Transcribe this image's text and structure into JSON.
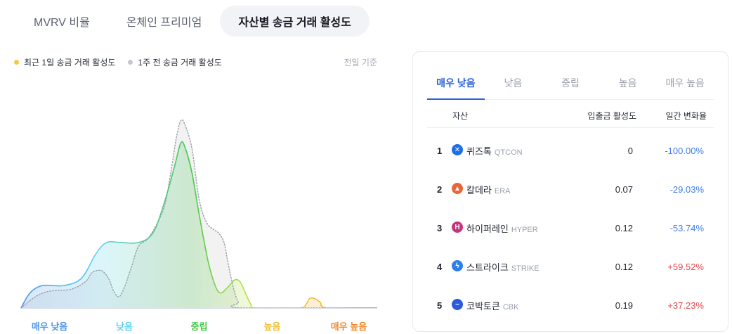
{
  "top_tabs": [
    {
      "label": "MVRV 비율",
      "active": false
    },
    {
      "label": "온체인 프리미엄",
      "active": false
    },
    {
      "label": "자산별 송금 거래 활성도",
      "active": true
    }
  ],
  "legend": {
    "current": {
      "label": "최근 1일 송금 거래 활성도",
      "color": "#f2c94c"
    },
    "previous": {
      "label": "1주 전 송금 거래 활성도",
      "color": "#c4c7cf"
    }
  },
  "reference_label": "전일 기준",
  "chart_data": {
    "type": "area",
    "categories": [
      "매우 낮음",
      "낮음",
      "중립",
      "높음",
      "매우 높음"
    ],
    "category_colors": [
      "#4f94e6",
      "#5fd3f0",
      "#48c64a",
      "#f0c23c",
      "#f08a2c"
    ],
    "x_range": [
      0,
      100
    ],
    "y_range": [
      0,
      100
    ],
    "series": [
      {
        "name": "최근 1일 송금 거래 활성도",
        "style": "filled-gradient",
        "points": [
          [
            0,
            0
          ],
          [
            2.5,
            8
          ],
          [
            6,
            12
          ],
          [
            12,
            12
          ],
          [
            17,
            16
          ],
          [
            21,
            29
          ],
          [
            24,
            35
          ],
          [
            28,
            35
          ],
          [
            33,
            35
          ],
          [
            37,
            40
          ],
          [
            40,
            55
          ],
          [
            43,
            75
          ],
          [
            44.8,
            88
          ],
          [
            46,
            86
          ],
          [
            48,
            72
          ],
          [
            50,
            50
          ],
          [
            52.5,
            25
          ],
          [
            54.5,
            12
          ],
          [
            56,
            8
          ],
          [
            58,
            11
          ],
          [
            60,
            15
          ],
          [
            61.5,
            14
          ],
          [
            63,
            8
          ],
          [
            64.5,
            2
          ],
          [
            66,
            0
          ],
          [
            78,
            0
          ],
          [
            80,
            2
          ],
          [
            81,
            5
          ],
          [
            82.5,
            5
          ],
          [
            84,
            3
          ],
          [
            86,
            0
          ],
          [
            100,
            0
          ]
        ]
      },
      {
        "name": "1주 전 송금 거래 활성도",
        "style": "dotted",
        "points": [
          [
            0,
            0
          ],
          [
            4,
            6
          ],
          [
            8,
            9
          ],
          [
            14,
            10
          ],
          [
            18,
            14
          ],
          [
            20,
            19
          ],
          [
            22.5,
            20
          ],
          [
            24.5,
            16
          ],
          [
            26,
            9
          ],
          [
            27.5,
            6
          ],
          [
            29,
            11
          ],
          [
            31,
            22
          ],
          [
            33,
            33
          ],
          [
            36,
            38
          ],
          [
            40,
            53
          ],
          [
            42,
            72
          ],
          [
            43.5,
            90
          ],
          [
            44.8,
            100
          ],
          [
            46,
            98
          ],
          [
            48,
            85
          ],
          [
            50,
            58
          ],
          [
            52,
            46
          ],
          [
            54,
            42
          ],
          [
            55.5,
            40
          ],
          [
            57,
            35
          ],
          [
            58,
            25
          ],
          [
            59,
            16
          ],
          [
            60,
            8
          ],
          [
            61,
            3
          ],
          [
            62,
            0
          ],
          [
            100,
            0
          ]
        ]
      }
    ]
  },
  "panel": {
    "tabs": [
      {
        "label": "매우 낮음",
        "active": true
      },
      {
        "label": "낮음",
        "active": false
      },
      {
        "label": "중립",
        "active": false
      },
      {
        "label": "높음",
        "active": false
      },
      {
        "label": "매우 높음",
        "active": false
      }
    ],
    "headers": {
      "asset": "자산",
      "activity": "입출금 활성도",
      "change": "일간 변화율"
    },
    "rows": [
      {
        "rank": "1",
        "name": "퀴즈톡",
        "symbol": "QTCON",
        "activity": "0",
        "change": "-100.00%",
        "direction": "neg",
        "icon": "qtcon-icon",
        "icon_color": "#1c6fe8"
      },
      {
        "rank": "2",
        "name": "칼데라",
        "symbol": "ERA",
        "activity": "0.07",
        "change": "-29.03%",
        "direction": "neg",
        "icon": "era-icon",
        "icon_color": "#e8663a"
      },
      {
        "rank": "3",
        "name": "하이퍼레인",
        "symbol": "HYPER",
        "activity": "0.12",
        "change": "-53.74%",
        "direction": "neg",
        "icon": "hyper-icon",
        "icon_color": "#c5357f"
      },
      {
        "rank": "4",
        "name": "스트라이크",
        "symbol": "STRIKE",
        "activity": "0.12",
        "change": "+59.52%",
        "direction": "pos",
        "icon": "strike-icon",
        "icon_color": "#2c7ee8"
      },
      {
        "rank": "5",
        "name": "코박토큰",
        "symbol": "CBK",
        "activity": "0.19",
        "change": "+37.23%",
        "direction": "pos",
        "icon": "cbk-icon",
        "icon_color": "#2b5bd8"
      }
    ]
  }
}
